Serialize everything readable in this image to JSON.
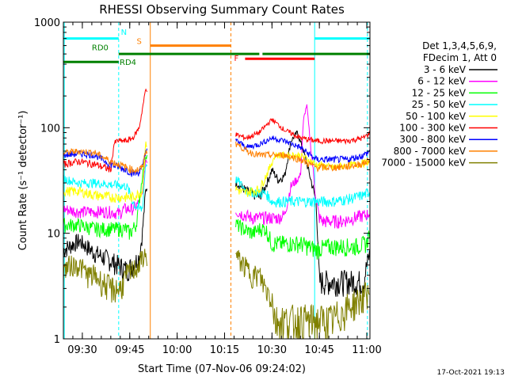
{
  "chart_data": {
    "type": "line",
    "title": "RHESSI Observing Summary Count Rates",
    "xlabel": "Start Time (07-Nov-06 09:24:02)",
    "ylabel": "Count Rate (s⁻¹ detector⁻¹)",
    "ylog": true,
    "ylim": [
      1,
      1000
    ],
    "xlim_minutes": [
      0,
      97
    ],
    "x_ticks": [
      {
        "t": 6,
        "label": "09:30"
      },
      {
        "t": 21,
        "label": "09:45"
      },
      {
        "t": 36,
        "label": "10:00"
      },
      {
        "t": 51,
        "label": "10:15"
      },
      {
        "t": 66,
        "label": "10:30"
      },
      {
        "t": 81,
        "label": "10:45"
      },
      {
        "t": 96,
        "label": "11:00"
      }
    ],
    "y_ticks": [
      {
        "v": 1,
        "label": "1"
      },
      {
        "v": 10,
        "label": "10"
      },
      {
        "v": 100,
        "label": "100"
      },
      {
        "v": 1000,
        "label": "1000"
      }
    ],
    "legend_header": [
      "Det 1,3,4,5,6,9,",
      "FDecim 1, Att 0"
    ],
    "series": [
      {
        "name": "3 - 6 keV",
        "color": "#000000",
        "x": [
          0,
          5,
          10,
          15,
          20,
          22,
          24,
          25,
          26,
          27,
          55,
          58,
          62,
          64,
          66,
          68,
          70,
          72,
          74,
          76,
          78,
          80,
          81,
          82,
          86,
          90,
          95,
          96,
          97
        ],
        "y": [
          7,
          8.5,
          6.5,
          5.5,
          4.5,
          5,
          6,
          10,
          25,
          30,
          30,
          25,
          22,
          28,
          40,
          32,
          35,
          75,
          90,
          60,
          35,
          20,
          3.5,
          3.5,
          3.5,
          3.5,
          3.5,
          5,
          6.5
        ]
      },
      {
        "name": "6 - 12 keV",
        "color": "#ff00ff",
        "x": [
          0,
          5,
          10,
          15,
          17,
          18,
          19,
          20,
          21,
          22,
          23,
          24,
          25,
          26,
          55,
          57,
          60,
          65,
          68,
          70,
          72,
          75,
          76,
          77,
          78,
          79,
          80,
          81,
          82,
          88,
          92,
          96,
          97
        ],
        "y": [
          17,
          16,
          16,
          16,
          15.5,
          15.5,
          17,
          17,
          17,
          17,
          18,
          20,
          23,
          50,
          16,
          15,
          14,
          14,
          14,
          15,
          28,
          35,
          120,
          165,
          80,
          40,
          20,
          14,
          13,
          13,
          14,
          15,
          16
        ]
      },
      {
        "name": "12 - 25 keV",
        "color": "#00ff00",
        "x": [
          0,
          5,
          10,
          15,
          20,
          21,
          22,
          23,
          24,
          25,
          26,
          55,
          57,
          60,
          62,
          64,
          66,
          70,
          75,
          80,
          84,
          88,
          92,
          96,
          97
        ],
        "y": [
          12,
          12,
          11,
          11,
          11,
          10,
          11,
          12,
          20,
          35,
          55,
          12,
          11,
          10,
          11,
          11,
          8,
          8,
          8,
          7,
          7.5,
          7.5,
          7.5,
          8,
          11
        ]
      },
      {
        "name": "25 - 50 keV",
        "color": "#00ffff",
        "x": [
          0,
          3,
          5,
          10,
          15,
          20,
          21,
          22,
          23,
          24,
          25,
          26,
          55,
          58,
          62,
          64,
          66,
          70,
          75,
          80,
          85,
          90,
          95,
          97
        ],
        "y": [
          33,
          31,
          30,
          30,
          29,
          28,
          24,
          20,
          18,
          17,
          17,
          45,
          32,
          25,
          24,
          24,
          20,
          20,
          20,
          20,
          20,
          21,
          23,
          25
        ]
      },
      {
        "name": "50 - 100 keV",
        "color": "#ffff00",
        "x": [
          0,
          5,
          10,
          15,
          20,
          22,
          24,
          25,
          26,
          55,
          57,
          59,
          62,
          63,
          65,
          67,
          70,
          75,
          80,
          85,
          90,
          95,
          97
        ],
        "y": [
          25,
          25,
          23,
          22,
          22,
          22,
          24,
          25,
          70,
          26,
          24,
          25,
          26,
          30,
          40,
          55,
          55,
          55,
          45,
          42,
          44,
          46,
          48
        ]
      },
      {
        "name": "100 - 300 keV",
        "color": "#ff0000",
        "x": [
          0,
          3,
          5,
          10,
          15,
          16,
          17,
          20,
          22,
          24,
          25,
          26,
          55,
          58,
          62,
          66,
          70,
          75,
          80,
          85,
          90,
          95,
          97
        ],
        "y": [
          45,
          47,
          48,
          45,
          40,
          70,
          75,
          75,
          80,
          100,
          150,
          230,
          85,
          80,
          90,
          120,
          95,
          80,
          75,
          75,
          75,
          80,
          90
        ]
      },
      {
        "name": "300 - 800 keV",
        "color": "#0000ff",
        "x": [
          0,
          5,
          10,
          15,
          20,
          22,
          24,
          25,
          26,
          55,
          58,
          62,
          66,
          70,
          75,
          80,
          85,
          90,
          95,
          97
        ],
        "y": [
          55,
          57,
          55,
          45,
          40,
          37,
          38,
          42,
          60,
          75,
          65,
          70,
          80,
          75,
          65,
          50,
          50,
          50,
          55,
          60
        ]
      },
      {
        "name": "800 - 7000 keV",
        "color": "#ff8000",
        "x": [
          0,
          5,
          10,
          15,
          20,
          22,
          24,
          25,
          26,
          55,
          58,
          62,
          66,
          70,
          75,
          80,
          85,
          90,
          95,
          97
        ],
        "y": [
          58,
          60,
          58,
          48,
          42,
          40,
          40,
          42,
          60,
          70,
          60,
          55,
          55,
          55,
          50,
          42,
          42,
          43,
          46,
          50
        ]
      },
      {
        "name": "7000 - 15000 keV",
        "color": "#808000",
        "x": [
          0,
          2,
          5,
          8,
          10,
          12,
          15,
          18,
          20,
          22,
          24,
          25,
          26,
          55,
          57,
          60,
          62,
          64,
          66,
          67,
          70,
          75,
          80,
          85,
          90,
          95,
          97
        ],
        "y": [
          4.5,
          5,
          5,
          4,
          4,
          3.5,
          3,
          3,
          4,
          4.5,
          5,
          6,
          6,
          6,
          5,
          4,
          4,
          3,
          2.5,
          1.5,
          1.5,
          1.5,
          1.5,
          1.5,
          2,
          2.5,
          3
        ]
      }
    ],
    "state_bars": [
      {
        "label": "N",
        "color": "#00ffff",
        "segments": [
          [
            0,
            17.5
          ],
          [
            79.5,
            97
          ]
        ],
        "level": 700
      },
      {
        "label": "S",
        "color": "#ff8000",
        "segments": [
          [
            27.5,
            53
          ]
        ],
        "level": 600
      },
      {
        "label": "F",
        "color": "#ff0000",
        "segments": [
          [
            57.5,
            79.5
          ]
        ],
        "level": 450
      },
      {
        "label": "RD0",
        "color": "#008000",
        "segments": [
          [
            17.5,
            53
          ],
          [
            53,
            62
          ],
          [
            63,
            97
          ]
        ],
        "level": 500
      },
      {
        "label": "RD4",
        "color": "#008000",
        "segments": [
          [
            0,
            17.5
          ]
        ],
        "level": 420
      }
    ],
    "vertical_markers": [
      {
        "t": 0.3,
        "color": "#00ffff",
        "style": "solid"
      },
      {
        "t": 17.5,
        "color": "#00ffff",
        "style": "dashed"
      },
      {
        "t": 27.5,
        "color": "#ff8000",
        "style": "solid"
      },
      {
        "t": 53,
        "color": "#ff8000",
        "style": "dashed"
      },
      {
        "t": 79.5,
        "color": "#00ffff",
        "style": "solid"
      },
      {
        "t": 96.2,
        "color": "#00ffff",
        "style": "dashed"
      }
    ],
    "data_gap": [
      26.5,
      54.5
    ],
    "footer_date": "17-Oct-2021 19:13"
  }
}
